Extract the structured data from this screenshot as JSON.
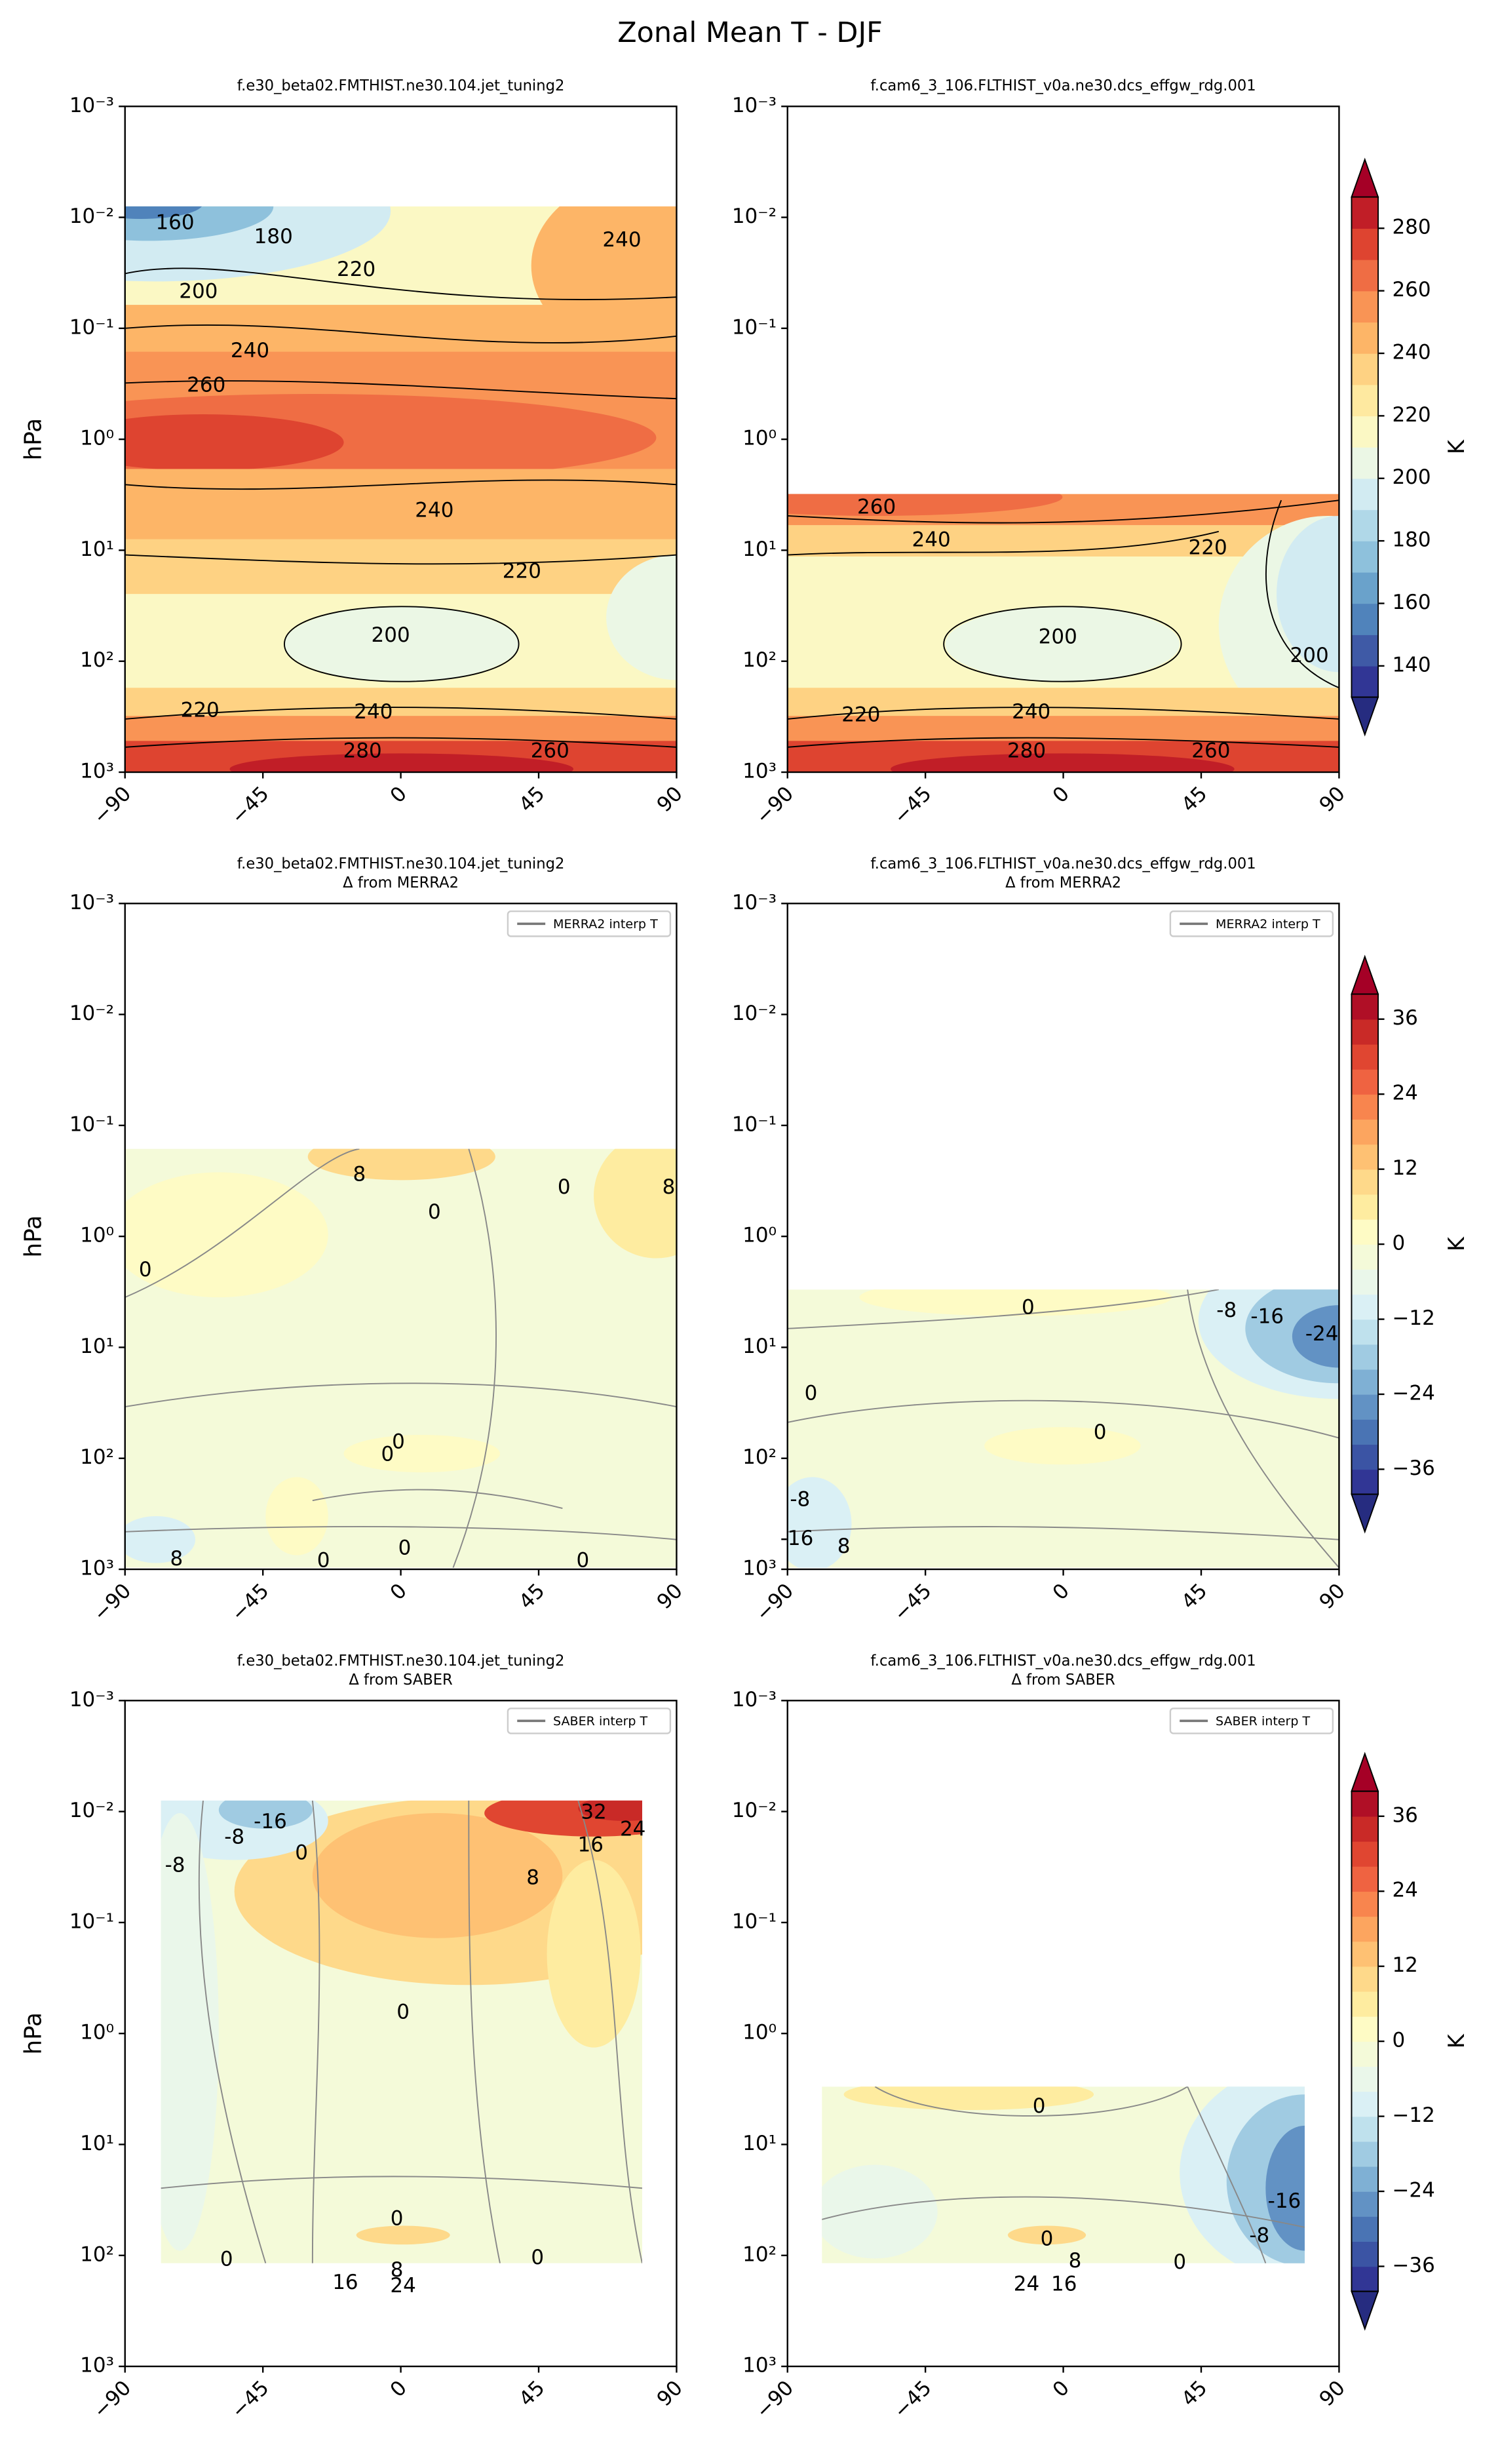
{
  "title": "Zonal Mean T - DJF",
  "chart_data": [
    {
      "type": "contour",
      "title": "f.e30_beta02.FMTHIST.ne30.104.jet_tuning2",
      "ylabel": "hPa",
      "xlim": [
        -90,
        90
      ],
      "ylim": [
        1000,
        0.001
      ],
      "log": "y",
      "xticks": [
        {
          "value": -90,
          "label": "−90"
        },
        {
          "value": -45,
          "label": "−45"
        },
        0,
        45,
        90
      ],
      "yticks": [
        {
          "value": 0.001,
          "label": "10⁻³"
        },
        {
          "value": 0.01,
          "label": "10⁻²"
        },
        {
          "value": 0.1,
          "label": "10⁻¹"
        },
        {
          "value": 1,
          "label": "10⁰"
        },
        {
          "value": 10,
          "label": "10¹"
        },
        {
          "value": 100,
          "label": "10²"
        },
        {
          "value": 1000,
          "label": "10³"
        }
      ],
      "contour_labels": [
        "160",
        "180",
        "200",
        "220",
        "240",
        "240",
        "260",
        "240",
        "220",
        "200",
        "220",
        "240",
        "280",
        "260"
      ]
    },
    {
      "type": "contour",
      "title": "f.cam6_3_106.FLTHIST_v0a.ne30.dcs_effgw_rdg.001",
      "xlim": [
        -90,
        90
      ],
      "ylim": [
        1000,
        0.001
      ],
      "log": "y",
      "xticks": [
        {
          "value": -90,
          "label": "−90"
        },
        {
          "value": -45,
          "label": "−45"
        },
        0,
        45,
        90
      ],
      "yticks": [
        {
          "value": 0.001,
          "label": "10⁻³"
        },
        {
          "value": 0.01,
          "label": "10⁻²"
        },
        {
          "value": 0.1,
          "label": "10⁻¹"
        },
        {
          "value": 1,
          "label": "10⁰"
        },
        {
          "value": 10,
          "label": "10¹"
        },
        {
          "value": 100,
          "label": "10²"
        },
        {
          "value": 1000,
          "label": "10³"
        }
      ],
      "contour_labels": [
        "260",
        "240",
        "220",
        "200",
        "200",
        "220",
        "240",
        "280",
        "260"
      ],
      "colorbar": {
        "label": "K",
        "clim": [
          130,
          290
        ],
        "ticks": [
          140,
          160,
          180,
          200,
          220,
          240,
          260,
          280
        ],
        "under_color": "#262c80",
        "over_color": "#a50026",
        "colors": [
          "#313695",
          "#3f5aa6",
          "#5083bb",
          "#6aa2cb",
          "#8ec1dc",
          "#b0d8e8",
          "#d2ebf2",
          "#ebf7e5",
          "#fbf8c4",
          "#fee9a0",
          "#fed283",
          "#fdb567",
          "#f99455",
          "#ef6d44",
          "#de4430",
          "#c11e27"
        ]
      }
    },
    {
      "type": "contour",
      "title": "f.e30_beta02.FMTHIST.ne30.104.jet_tuning2",
      "subtitle": "Δ from MERRA2",
      "ylabel": "hPa",
      "legend": "MERRA2 interp T",
      "xlim": [
        -90,
        90
      ],
      "ylim": [
        1000,
        0.001
      ],
      "log": "y",
      "xticks": [
        {
          "value": -90,
          "label": "−90"
        },
        {
          "value": -45,
          "label": "−45"
        },
        0,
        45,
        90
      ],
      "yticks": [
        {
          "value": 0.001,
          "label": "10⁻³"
        },
        {
          "value": 0.01,
          "label": "10⁻²"
        },
        {
          "value": 0.1,
          "label": "10⁻¹"
        },
        {
          "value": 1,
          "label": "10⁰"
        },
        {
          "value": 10,
          "label": "10¹"
        },
        {
          "value": 100,
          "label": "10²"
        },
        {
          "value": 1000,
          "label": "10³"
        }
      ],
      "contour_labels": [
        "8",
        "0",
        "8",
        "0",
        "0",
        "0",
        "0",
        "8",
        "0",
        "0",
        "0"
      ]
    },
    {
      "type": "contour",
      "title": "f.cam6_3_106.FLTHIST_v0a.ne30.dcs_effgw_rdg.001",
      "subtitle": "Δ from MERRA2",
      "legend": "MERRA2 interp T",
      "xlim": [
        -90,
        90
      ],
      "ylim": [
        1000,
        0.001
      ],
      "log": "y",
      "xticks": [
        {
          "value": -90,
          "label": "−90"
        },
        {
          "value": -45,
          "label": "−45"
        },
        0,
        45,
        90
      ],
      "yticks": [
        {
          "value": 0.001,
          "label": "10⁻³"
        },
        {
          "value": 0.01,
          "label": "10⁻²"
        },
        {
          "value": 0.1,
          "label": "10⁻¹"
        },
        {
          "value": 1,
          "label": "10⁰"
        },
        {
          "value": 10,
          "label": "10¹"
        },
        {
          "value": 100,
          "label": "10²"
        },
        {
          "value": 1000,
          "label": "10³"
        }
      ],
      "contour_labels": [
        "0",
        "-8",
        "-16",
        "-24",
        "0",
        "0",
        "-8",
        "-16",
        "8"
      ],
      "colorbar": {
        "label": "K",
        "clim": [
          -40,
          40
        ],
        "ticks": [
          {
            "value": -36,
            "label": "−36"
          },
          {
            "value": -24,
            "label": "−24"
          },
          {
            "value": -12,
            "label": "−12"
          },
          0,
          12,
          24,
          36
        ],
        "under_color": "#262c80",
        "over_color": "#a50026",
        "colors": [
          "#313695",
          "#3b54a4",
          "#4a74b4",
          "#6292c4",
          "#7fb0d4",
          "#a0cbe2",
          "#bfe1ed",
          "#daf0f5",
          "#eaf7ea",
          "#f4fad9",
          "#fefbc5",
          "#feeca0",
          "#fed98a",
          "#fec173",
          "#fca55f",
          "#f8854e",
          "#ef6341",
          "#e04631",
          "#c92a27",
          "#b00f26"
        ]
      }
    },
    {
      "type": "contour",
      "title": "f.e30_beta02.FMTHIST.ne30.104.jet_tuning2",
      "subtitle": "Δ from SABER",
      "ylabel": "hPa",
      "legend": "SABER interp T",
      "xlim": [
        -90,
        90
      ],
      "ylim": [
        1000,
        0.001
      ],
      "log": "y",
      "xticks": [
        {
          "value": -90,
          "label": "−90"
        },
        {
          "value": -45,
          "label": "−45"
        },
        0,
        45,
        90
      ],
      "yticks": [
        {
          "value": 0.001,
          "label": "10⁻³"
        },
        {
          "value": 0.01,
          "label": "10⁻²"
        },
        {
          "value": 0.1,
          "label": "10⁻¹"
        },
        {
          "value": 1,
          "label": "10⁰"
        },
        {
          "value": 10,
          "label": "10¹"
        },
        {
          "value": 100,
          "label": "10²"
        },
        {
          "value": 1000,
          "label": "10³"
        }
      ],
      "contour_labels": [
        "-16",
        "-8",
        "-8",
        "0",
        "32",
        "24",
        "16",
        "8",
        "0",
        "0",
        "0",
        "0",
        "16",
        "8",
        "24"
      ]
    },
    {
      "type": "contour",
      "title": "f.cam6_3_106.FLTHIST_v0a.ne30.dcs_effgw_rdg.001",
      "subtitle": "Δ from SABER",
      "legend": "SABER interp T",
      "xlim": [
        -90,
        90
      ],
      "ylim": [
        1000,
        0.001
      ],
      "log": "y",
      "xticks": [
        {
          "value": -90,
          "label": "−90"
        },
        {
          "value": -45,
          "label": "−45"
        },
        0,
        45,
        90
      ],
      "yticks": [
        {
          "value": 0.001,
          "label": "10⁻³"
        },
        {
          "value": 0.01,
          "label": "10⁻²"
        },
        {
          "value": 0.1,
          "label": "10⁻¹"
        },
        {
          "value": 1,
          "label": "10⁰"
        },
        {
          "value": 10,
          "label": "10¹"
        },
        {
          "value": 100,
          "label": "10²"
        },
        {
          "value": 1000,
          "label": "10³"
        }
      ],
      "contour_labels": [
        "0",
        "-16",
        "-8",
        "0",
        "8",
        "0",
        "24",
        "16"
      ],
      "colorbar": {
        "label": "K",
        "clim": [
          -40,
          40
        ],
        "ticks": [
          {
            "value": -36,
            "label": "−36"
          },
          {
            "value": -24,
            "label": "−24"
          },
          {
            "value": -12,
            "label": "−12"
          },
          0,
          12,
          24,
          36
        ],
        "under_color": "#262c80",
        "over_color": "#a50026",
        "colors": [
          "#313695",
          "#3b54a4",
          "#4a74b4",
          "#6292c4",
          "#7fb0d4",
          "#a0cbe2",
          "#bfe1ed",
          "#daf0f5",
          "#eaf7ea",
          "#f4fad9",
          "#fefbc5",
          "#feeca0",
          "#fed98a",
          "#fec173",
          "#fca55f",
          "#f8854e",
          "#ef6341",
          "#e04631",
          "#c92a27",
          "#b00f26"
        ]
      }
    }
  ]
}
